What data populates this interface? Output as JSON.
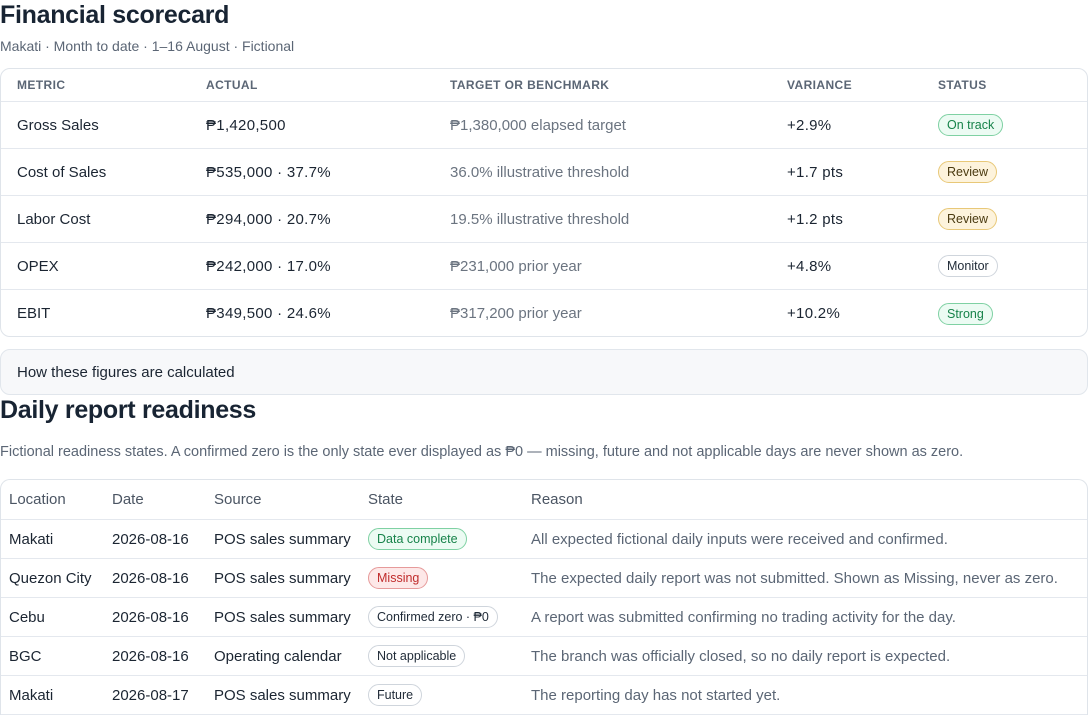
{
  "scorecard": {
    "title": "Financial scorecard",
    "subtitle": "Makati · Month to date · 1–16 August · Fictional",
    "columns": [
      "METRIC",
      "ACTUAL",
      "TARGET OR BENCHMARK",
      "VARIANCE",
      "STATUS"
    ],
    "rows": [
      {
        "metric": "Gross Sales",
        "actual": "₱1,420,500",
        "target": "₱1,380,000 elapsed target",
        "variance": "+2.9%",
        "status": "On track"
      },
      {
        "metric": "Cost of Sales",
        "actual": "₱535,000 · 37.7%",
        "target": "36.0% illustrative threshold",
        "variance": "+1.7 pts",
        "status": "Review"
      },
      {
        "metric": "Labor Cost",
        "actual": "₱294,000 · 20.7%",
        "target": "19.5% illustrative threshold",
        "variance": "+1.2 pts",
        "status": "Review"
      },
      {
        "metric": "OPEX",
        "actual": "₱242,000 · 17.0%",
        "target": "₱231,000 prior year",
        "variance": "+4.8%",
        "status": "Monitor"
      },
      {
        "metric": "EBIT",
        "actual": "₱349,500 · 24.6%",
        "target": "₱317,200 prior year",
        "variance": "+10.2%",
        "status": "Strong"
      }
    ],
    "calc_toggle": "How these figures are calculated"
  },
  "readiness": {
    "title": "Daily report readiness",
    "description": "Fictional readiness states. A confirmed zero is the only state ever displayed as ₱0 — missing, future and not applicable days are never shown as zero.",
    "columns": [
      "Location",
      "Date",
      "Source",
      "State",
      "Reason"
    ],
    "rows": [
      {
        "location": "Makati",
        "date": "2026-08-16",
        "source": "POS sales summary",
        "state": "Data complete",
        "reason": "All expected fictional daily inputs were received and confirmed."
      },
      {
        "location": "Quezon City",
        "date": "2026-08-16",
        "source": "POS sales summary",
        "state": "Missing",
        "reason": "The expected daily report was not submitted. Shown as Missing, never as zero."
      },
      {
        "location": "Cebu",
        "date": "2026-08-16",
        "source": "POS sales summary",
        "state": "Confirmed zero · ₱0",
        "reason": "A report was submitted confirming no trading activity for the day."
      },
      {
        "location": "BGC",
        "date": "2026-08-16",
        "source": "Operating calendar",
        "state": "Not applicable",
        "reason": "The branch was officially closed, so no daily report is expected."
      },
      {
        "location": "Makati",
        "date": "2026-08-17",
        "source": "POS sales summary",
        "state": "Future",
        "reason": "The reporting day has not started yet."
      }
    ]
  },
  "colors": {
    "on_track": "#17834a",
    "review": "#e8c878",
    "missing": "#c02b2b",
    "neutral": "#cfd5dc"
  }
}
